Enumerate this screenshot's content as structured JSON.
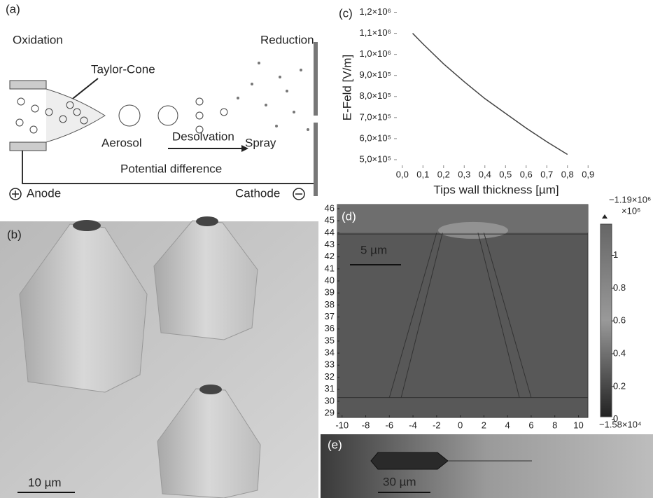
{
  "panel_a": {
    "label": "(a)",
    "oxidation": "Oxidation",
    "reduction": "Reduction",
    "taylor_cone": "Taylor-Cone",
    "aerosol": "Aerosol",
    "desolvation": "Desolvation",
    "spray": "Spray",
    "potential_difference": "Potential difference",
    "anode": "Anode",
    "cathode": "Cathode"
  },
  "panel_b": {
    "label": "(b)",
    "scale_bar": "10 µm"
  },
  "chart_data": [
    {
      "type": "line",
      "label": "(c)",
      "xlabel": "Tips wall thickness [µm]",
      "ylabel": "E-Feld [V/m]",
      "color": "#444444",
      "x": [
        0.05,
        0.1,
        0.2,
        0.3,
        0.4,
        0.5,
        0.6,
        0.7,
        0.8
      ],
      "values": [
        1100000,
        1050000,
        955000,
        870000,
        790000,
        720000,
        650000,
        585000,
        525000
      ],
      "xlim": [
        -0.04,
        0.95
      ],
      "ylim": [
        460000,
        1225000
      ],
      "xticks": [
        {
          "value": 0,
          "label": "0,0"
        },
        {
          "value": 0.1,
          "label": "0,1"
        },
        {
          "value": 0.2,
          "label": "0,2"
        },
        {
          "value": 0.3,
          "label": "0,3"
        },
        {
          "value": 0.4,
          "label": "0,4"
        },
        {
          "value": 0.5,
          "label": "0,5"
        },
        {
          "value": 0.6,
          "label": "0,6"
        },
        {
          "value": 0.7,
          "label": "0,7"
        },
        {
          "value": 0.8,
          "label": "0,8"
        },
        {
          "value": 0.9,
          "label": "0,9"
        }
      ],
      "yticks": [
        {
          "value": 500000,
          "label": "5,0×10⁵"
        },
        {
          "value": 600000,
          "label": "6,0×10⁵"
        },
        {
          "value": 700000,
          "label": "7,0×10⁵"
        },
        {
          "value": 800000,
          "label": "8,0×10⁵"
        },
        {
          "value": 900000,
          "label": "9,0×10⁵"
        },
        {
          "value": 1000000,
          "label": "1,0×10⁶"
        },
        {
          "value": 1100000,
          "label": "1,1×10⁶"
        },
        {
          "value": 1200000,
          "label": "1,2×10⁶"
        }
      ]
    },
    {
      "type": "heatmap",
      "label": "(d)",
      "scale_bar": "5 µm",
      "xlim": [
        -10.4,
        10.8
      ],
      "ylim": [
        28.65,
        46.35
      ],
      "xticks": [
        -10,
        -8,
        -6,
        -4,
        -2,
        0,
        2,
        4,
        6,
        8,
        10
      ],
      "yticks": [
        29,
        30,
        31,
        32,
        33,
        34,
        35,
        36,
        37,
        38,
        39,
        40,
        41,
        42,
        43,
        44,
        45,
        46
      ],
      "colorbar": {
        "clim": [
          0.0158,
          1.19
        ],
        "ticks": [
          0,
          0.2,
          0.4,
          0.6,
          0.8,
          1
        ],
        "unit": "×10⁶",
        "max_label": "−1.19×10⁶",
        "min_label": "−1.58×10⁴"
      }
    }
  ],
  "panel_e": {
    "label": "(e)",
    "scale_bar": "30 µm"
  }
}
